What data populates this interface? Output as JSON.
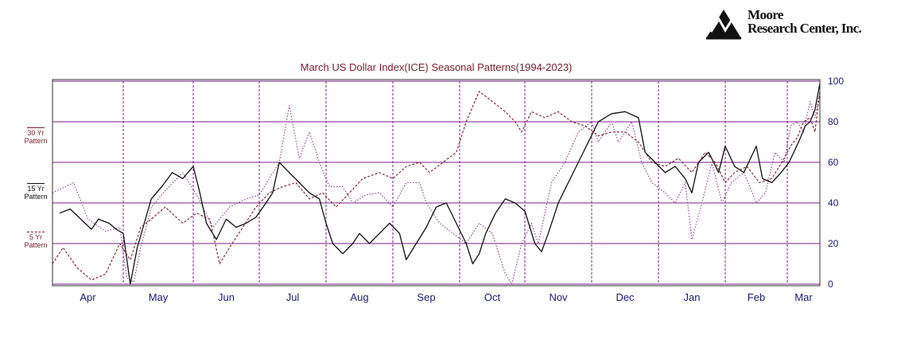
{
  "logo": {
    "line1": "Moore",
    "line2": "Research Center, Inc."
  },
  "legend": [
    {
      "line1": "30 Yr",
      "line2": "Pattern"
    },
    {
      "line1": "15 Yr",
      "line2": "Pattern"
    },
    {
      "line1": "5 Yr",
      "line2": "Pattern"
    }
  ],
  "colors": {
    "title": "#7a1f2b",
    "grid": "#7a1f8a",
    "axis": "#1a1a7a",
    "s30": "#8a3a8a",
    "s15": "#111111",
    "s5": "#7a1f2b"
  },
  "chart_data": {
    "type": "line",
    "title": "March US Dollar Index(ICE) Seasonal Patterns(1994-2023)",
    "months": [
      "Apr",
      "May",
      "Jun",
      "Jul",
      "Aug",
      "Sep",
      "Oct",
      "Nov",
      "Dec",
      "Jan",
      "Feb",
      "Mar"
    ],
    "month_boundaries": [
      0.0,
      0.0,
      0.0,
      0.0,
      0.0,
      0.0,
      0.0,
      0.0,
      0.0,
      0.0,
      0.0,
      0.0
    ],
    "yticks": [
      0,
      20,
      40,
      60,
      80,
      100
    ],
    "ylim": [
      0,
      100
    ],
    "xlim": [
      0,
      12
    ],
    "series": [
      {
        "name": "30 Yr Pattern",
        "style": "dotted",
        "points": [
          [
            0.0,
            45
          ],
          [
            0.3,
            50
          ],
          [
            0.5,
            32
          ],
          [
            0.75,
            26
          ],
          [
            0.95,
            28
          ],
          [
            1.05,
            3
          ],
          [
            1.15,
            1
          ],
          [
            1.25,
            18
          ],
          [
            1.4,
            38
          ],
          [
            1.6,
            46
          ],
          [
            1.85,
            55
          ],
          [
            2.05,
            44
          ],
          [
            2.3,
            28
          ],
          [
            2.55,
            38
          ],
          [
            2.8,
            42
          ],
          [
            3.0,
            44
          ],
          [
            3.3,
            60
          ],
          [
            3.45,
            88
          ],
          [
            3.6,
            62
          ],
          [
            3.75,
            75
          ],
          [
            3.9,
            60
          ],
          [
            4.05,
            48
          ],
          [
            4.25,
            48
          ],
          [
            4.4,
            40
          ],
          [
            4.6,
            44
          ],
          [
            4.8,
            45
          ],
          [
            5.0,
            38
          ],
          [
            5.2,
            50
          ],
          [
            5.4,
            50
          ],
          [
            5.5,
            40
          ],
          [
            5.7,
            30
          ],
          [
            5.9,
            25
          ],
          [
            6.1,
            20
          ],
          [
            6.3,
            30
          ],
          [
            6.5,
            25
          ],
          [
            6.7,
            5
          ],
          [
            6.8,
            0
          ],
          [
            6.95,
            20
          ],
          [
            7.1,
            30
          ],
          [
            7.2,
            20
          ],
          [
            7.4,
            50
          ],
          [
            7.6,
            60
          ],
          [
            7.8,
            75
          ],
          [
            8.0,
            80
          ],
          [
            8.1,
            70
          ],
          [
            8.3,
            80
          ],
          [
            8.4,
            70
          ],
          [
            8.6,
            80
          ],
          [
            8.75,
            60
          ],
          [
            8.9,
            50
          ],
          [
            9.1,
            45
          ],
          [
            9.25,
            40
          ],
          [
            9.4,
            50
          ],
          [
            9.5,
            22
          ],
          [
            9.65,
            40
          ],
          [
            9.8,
            60
          ],
          [
            9.95,
            40
          ],
          [
            10.1,
            50
          ],
          [
            10.3,
            55
          ],
          [
            10.5,
            40
          ],
          [
            10.65,
            45
          ],
          [
            10.8,
            65
          ],
          [
            10.95,
            60
          ],
          [
            11.1,
            78
          ],
          [
            11.3,
            80
          ],
          [
            11.5,
            75
          ],
          [
            11.7,
            90
          ],
          [
            11.85,
            82
          ],
          [
            12.0,
            95
          ]
        ]
      },
      {
        "name": "15 Yr Pattern",
        "style": "solid",
        "points": [
          [
            0.1,
            35
          ],
          [
            0.25,
            37
          ],
          [
            0.4,
            32
          ],
          [
            0.55,
            27
          ],
          [
            0.65,
            32
          ],
          [
            0.8,
            30
          ],
          [
            0.9,
            27
          ],
          [
            1.0,
            25
          ],
          [
            1.1,
            0
          ],
          [
            1.2,
            18
          ],
          [
            1.3,
            30
          ],
          [
            1.4,
            42
          ],
          [
            1.55,
            48
          ],
          [
            1.7,
            55
          ],
          [
            1.85,
            52
          ],
          [
            2.0,
            58
          ],
          [
            2.1,
            45
          ],
          [
            2.2,
            30
          ],
          [
            2.35,
            22
          ],
          [
            2.5,
            32
          ],
          [
            2.65,
            28
          ],
          [
            2.8,
            30
          ],
          [
            2.95,
            33
          ],
          [
            3.1,
            40
          ],
          [
            3.2,
            45
          ],
          [
            3.3,
            60
          ],
          [
            3.45,
            55
          ],
          [
            3.6,
            50
          ],
          [
            3.75,
            45
          ],
          [
            3.9,
            42
          ],
          [
            4.0,
            30
          ],
          [
            4.1,
            20
          ],
          [
            4.25,
            15
          ],
          [
            4.4,
            20
          ],
          [
            4.5,
            25
          ],
          [
            4.65,
            20
          ],
          [
            4.8,
            25
          ],
          [
            4.95,
            30
          ],
          [
            5.1,
            25
          ],
          [
            5.2,
            12
          ],
          [
            5.35,
            20
          ],
          [
            5.5,
            28
          ],
          [
            5.65,
            38
          ],
          [
            5.8,
            40
          ],
          [
            5.95,
            30
          ],
          [
            6.1,
            20
          ],
          [
            6.2,
            10
          ],
          [
            6.3,
            15
          ],
          [
            6.4,
            25
          ],
          [
            6.55,
            35
          ],
          [
            6.7,
            42
          ],
          [
            6.85,
            40
          ],
          [
            7.0,
            36
          ],
          [
            7.15,
            20
          ],
          [
            7.25,
            16
          ],
          [
            7.35,
            25
          ],
          [
            7.5,
            40
          ],
          [
            7.65,
            50
          ],
          [
            7.8,
            60
          ],
          [
            7.95,
            70
          ],
          [
            8.1,
            80
          ],
          [
            8.3,
            84
          ],
          [
            8.5,
            85
          ],
          [
            8.7,
            82
          ],
          [
            8.8,
            65
          ],
          [
            8.95,
            60
          ],
          [
            9.1,
            55
          ],
          [
            9.25,
            58
          ],
          [
            9.4,
            52
          ],
          [
            9.5,
            45
          ],
          [
            9.6,
            60
          ],
          [
            9.75,
            65
          ],
          [
            9.9,
            55
          ],
          [
            10.0,
            68
          ],
          [
            10.15,
            58
          ],
          [
            10.3,
            55
          ],
          [
            10.5,
            68
          ],
          [
            10.6,
            52
          ],
          [
            10.75,
            50
          ],
          [
            10.9,
            55
          ],
          [
            11.05,
            60
          ],
          [
            11.2,
            65
          ],
          [
            11.4,
            72
          ],
          [
            11.55,
            78
          ],
          [
            11.7,
            80
          ],
          [
            11.85,
            86
          ],
          [
            12.0,
            99
          ]
        ]
      },
      {
        "name": "5 Yr Pattern",
        "style": "dashed",
        "points": [
          [
            0.0,
            10
          ],
          [
            0.15,
            18
          ],
          [
            0.35,
            8
          ],
          [
            0.55,
            2
          ],
          [
            0.75,
            5
          ],
          [
            0.95,
            20
          ],
          [
            1.1,
            12
          ],
          [
            1.25,
            28
          ],
          [
            1.4,
            32
          ],
          [
            1.6,
            38
          ],
          [
            1.85,
            30
          ],
          [
            2.05,
            35
          ],
          [
            2.25,
            32
          ],
          [
            2.4,
            10
          ],
          [
            2.55,
            18
          ],
          [
            2.75,
            28
          ],
          [
            2.95,
            38
          ],
          [
            3.15,
            45
          ],
          [
            3.35,
            48
          ],
          [
            3.55,
            50
          ],
          [
            3.75,
            42
          ],
          [
            3.95,
            45
          ],
          [
            4.15,
            38
          ],
          [
            4.35,
            45
          ],
          [
            4.55,
            52
          ],
          [
            4.8,
            55
          ],
          [
            5.0,
            52
          ],
          [
            5.2,
            58
          ],
          [
            5.4,
            60
          ],
          [
            5.55,
            55
          ],
          [
            5.75,
            60
          ],
          [
            5.95,
            65
          ],
          [
            6.1,
            80
          ],
          [
            6.3,
            95
          ],
          [
            6.5,
            90
          ],
          [
            6.7,
            85
          ],
          [
            6.85,
            80
          ],
          [
            6.95,
            75
          ],
          [
            7.1,
            85
          ],
          [
            7.3,
            82
          ],
          [
            7.5,
            85
          ],
          [
            7.7,
            80
          ],
          [
            7.9,
            78
          ],
          [
            8.1,
            73
          ],
          [
            8.3,
            75
          ],
          [
            8.5,
            75
          ],
          [
            8.7,
            70
          ],
          [
            8.9,
            60
          ],
          [
            9.1,
            58
          ],
          [
            9.3,
            62
          ],
          [
            9.5,
            55
          ],
          [
            9.7,
            65
          ],
          [
            9.85,
            60
          ],
          [
            10.0,
            50
          ],
          [
            10.15,
            55
          ],
          [
            10.35,
            58
          ],
          [
            10.55,
            50
          ],
          [
            10.75,
            52
          ],
          [
            10.95,
            62
          ],
          [
            11.1,
            68
          ],
          [
            11.3,
            72
          ],
          [
            11.5,
            80
          ],
          [
            11.7,
            82
          ],
          [
            11.85,
            75
          ],
          [
            12.0,
            95
          ]
        ]
      }
    ]
  }
}
